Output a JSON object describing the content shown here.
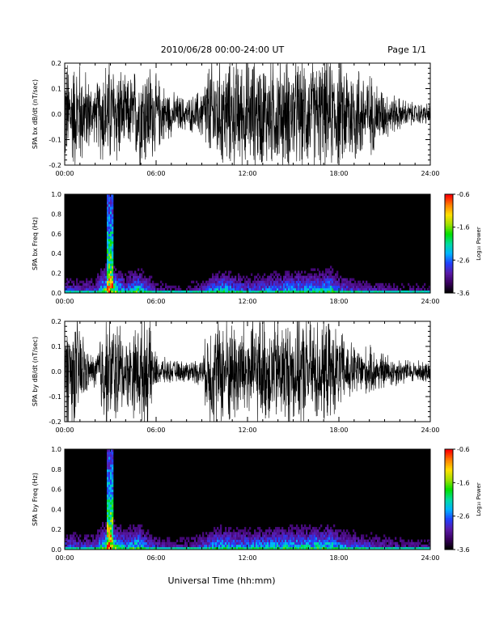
{
  "header": {
    "title": "2010/06/28  00:00-24:00 UT",
    "page": "Page 1/1"
  },
  "footer": {
    "xlabel": "Universal Time (hh:mm)"
  },
  "colors": {
    "trace": "#000000",
    "spectrogram_background": "#000000",
    "colormap": [
      "#000000",
      "#3a0060",
      "#5a1aa8",
      "#2040ff",
      "#00b4ff",
      "#00dca0",
      "#00e000",
      "#a0e000",
      "#ffe000",
      "#ff8000",
      "#ff0000"
    ]
  },
  "chart_data": [
    {
      "type": "line",
      "ylabel": "SPA bx dB/dt (nT/sec)",
      "xlim": [
        "00:00",
        "24:00"
      ],
      "ylim": [
        -0.2,
        0.2
      ],
      "xticks": [
        "00:00",
        "06:00",
        "12:00",
        "18:00",
        "24:00"
      ],
      "yticks": [
        "-0.2",
        "-0.1",
        "0.0",
        "0.1",
        "0.2"
      ],
      "envelope_hours": [
        0,
        1,
        2,
        2.5,
        3,
        3.5,
        4,
        5,
        5.5,
        6,
        7,
        8,
        8.5,
        9,
        9.5,
        10,
        11,
        12,
        13,
        14,
        15,
        16,
        17,
        18,
        19,
        20,
        21,
        22,
        23,
        24
      ],
      "envelope_amplitude": [
        0.2,
        0.2,
        0.09,
        0.2,
        0.2,
        0.2,
        0.12,
        0.2,
        0.2,
        0.14,
        0.08,
        0.06,
        0.07,
        0.1,
        0.2,
        0.2,
        0.2,
        0.2,
        0.2,
        0.2,
        0.2,
        0.2,
        0.2,
        0.2,
        0.2,
        0.15,
        0.09,
        0.06,
        0.04,
        0.04
      ]
    },
    {
      "type": "heatmap",
      "ylabel": "SPA bx Freq (Hz)",
      "xlim": [
        "00:00",
        "24:00"
      ],
      "ylim": [
        0,
        1.0
      ],
      "xticks": [
        "00:00",
        "06:00",
        "12:00",
        "18:00",
        "24:00"
      ],
      "yticks": [
        "0.0",
        "0.2",
        "0.4",
        "0.6",
        "0.8",
        "1.0"
      ],
      "colorbar": {
        "label": "Log₁₀ Power",
        "ticks": [
          "-0.6",
          "-1.6",
          "-2.6",
          "-3.6"
        ],
        "range": [
          -3.6,
          -0.6
        ]
      },
      "activity_hours": [
        0,
        1,
        2,
        2.9,
        3.1,
        3.5,
        4,
        4.8,
        5.2,
        6,
        7,
        8,
        9,
        10,
        10.5,
        11,
        12,
        13,
        14,
        14.5,
        15,
        15.5,
        16,
        16.5,
        17,
        17.5,
        18,
        19,
        20,
        21,
        22,
        23,
        24
      ],
      "activity_level": [
        0.35,
        0.3,
        0.35,
        1.0,
        1.0,
        0.7,
        0.45,
        0.7,
        0.5,
        0.25,
        0.2,
        0.2,
        0.3,
        0.55,
        0.6,
        0.5,
        0.4,
        0.45,
        0.5,
        0.6,
        0.55,
        0.6,
        0.55,
        0.65,
        0.6,
        0.7,
        0.45,
        0.35,
        0.3,
        0.25,
        0.2,
        0.2,
        0.2
      ]
    },
    {
      "type": "line",
      "ylabel": "SPA by dB/dt (nT/sec)",
      "xlim": [
        "00:00",
        "24:00"
      ],
      "ylim": [
        -0.2,
        0.2
      ],
      "xticks": [
        "00:00",
        "06:00",
        "12:00",
        "18:00",
        "24:00"
      ],
      "yticks": [
        "-0.2",
        "-0.1",
        "0.0",
        "0.1",
        "0.2"
      ],
      "envelope_hours": [
        0,
        1,
        1.5,
        2,
        2.5,
        3,
        3.5,
        4,
        5,
        5.5,
        6,
        7,
        8,
        9,
        9.5,
        10,
        11,
        12,
        13,
        14,
        15,
        16,
        17,
        18,
        19,
        20,
        21,
        22,
        23,
        24
      ],
      "envelope_amplitude": [
        0.2,
        0.2,
        0.07,
        0.06,
        0.2,
        0.2,
        0.2,
        0.12,
        0.2,
        0.2,
        0.06,
        0.04,
        0.04,
        0.05,
        0.2,
        0.2,
        0.2,
        0.2,
        0.2,
        0.2,
        0.2,
        0.2,
        0.2,
        0.15,
        0.1,
        0.09,
        0.07,
        0.05,
        0.04,
        0.04
      ]
    },
    {
      "type": "heatmap",
      "ylabel": "SPA by Freq (Hz)",
      "xlim": [
        "00:00",
        "24:00"
      ],
      "ylim": [
        0,
        1.0
      ],
      "xticks": [
        "00:00",
        "06:00",
        "12:00",
        "18:00",
        "24:00"
      ],
      "yticks": [
        "0.0",
        "0.2",
        "0.4",
        "0.6",
        "0.8",
        "1.0"
      ],
      "colorbar": {
        "label": "Log₁₀ Power",
        "ticks": [
          "-0.6",
          "-1.6",
          "-2.6",
          "-3.6"
        ],
        "range": [
          -3.6,
          -0.6
        ]
      },
      "activity_hours": [
        0,
        1,
        2,
        2.9,
        3.1,
        3.5,
        4,
        4.8,
        5.2,
        6,
        7,
        8,
        9,
        10,
        10.5,
        11,
        12,
        13,
        14,
        14.5,
        15,
        15.5,
        16,
        16.5,
        17,
        17.5,
        18,
        19,
        20,
        21,
        22,
        23,
        24
      ],
      "activity_level": [
        0.4,
        0.35,
        0.4,
        1.0,
        1.0,
        0.7,
        0.5,
        0.75,
        0.5,
        0.3,
        0.25,
        0.25,
        0.35,
        0.6,
        0.65,
        0.55,
        0.5,
        0.55,
        0.6,
        0.65,
        0.6,
        0.65,
        0.6,
        0.7,
        0.65,
        0.7,
        0.5,
        0.4,
        0.35,
        0.3,
        0.25,
        0.25,
        0.25
      ]
    }
  ]
}
